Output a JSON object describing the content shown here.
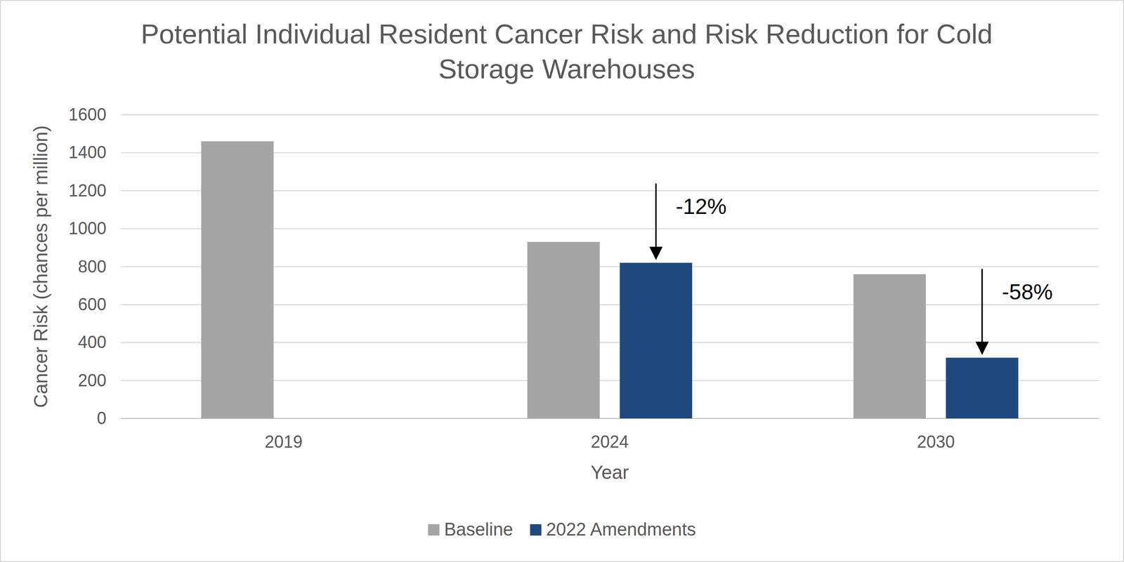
{
  "chart_data": {
    "type": "bar",
    "title": "Potential Individual Resident Cancer Risk and Risk Reduction for Cold Storage Warehouses",
    "x_label": "Year",
    "y_label": "Cancer Risk (chances per million)",
    "categories": [
      "2019",
      "2024",
      "2030"
    ],
    "series": [
      {
        "name": "Baseline",
        "color": "#a5a5a5",
        "values": [
          1460,
          930,
          760
        ]
      },
      {
        "name": "2022 Amendments",
        "color": "#1f497d",
        "values": [
          null,
          820,
          320
        ]
      }
    ],
    "annotations": [
      {
        "text": "-12%",
        "category": "2024",
        "series": "2022 Amendments"
      },
      {
        "text": "-58%",
        "category": "2030",
        "series": "2022 Amendments"
      }
    ],
    "ylim": [
      0,
      1600
    ],
    "yticks": [
      0,
      200,
      400,
      600,
      800,
      1000,
      1200,
      1400,
      1600
    ],
    "grid": true,
    "legend": "bottom"
  }
}
